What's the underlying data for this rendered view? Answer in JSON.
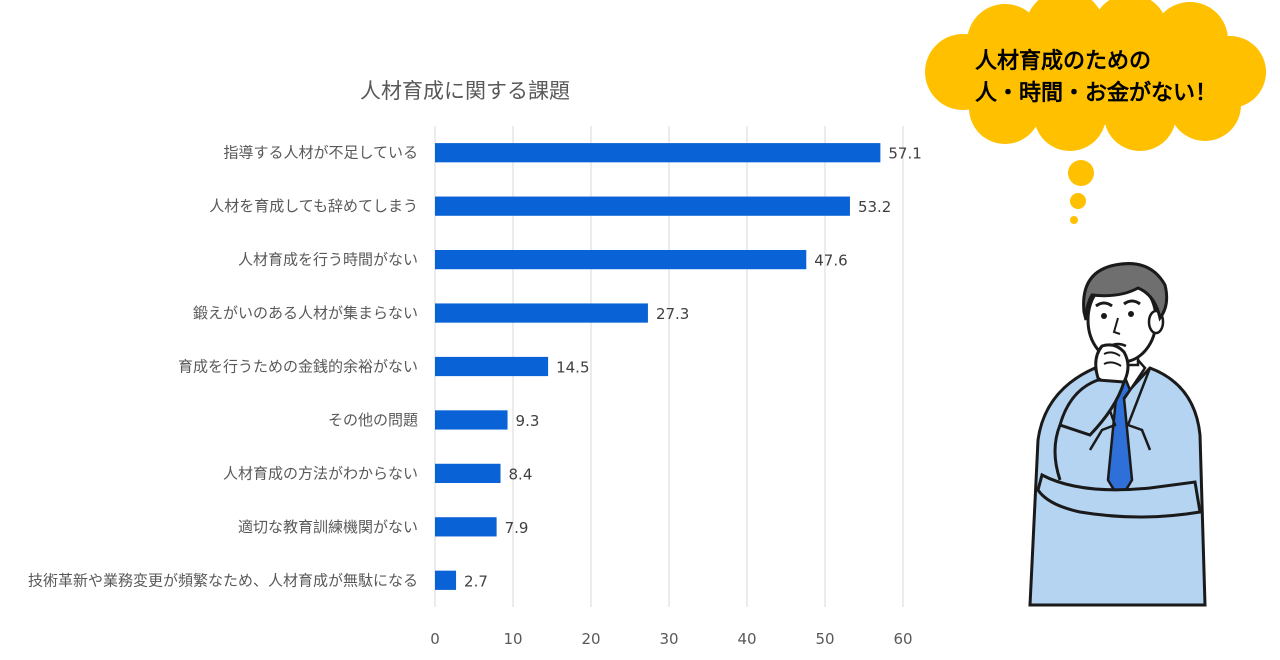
{
  "chart_data": {
    "type": "bar",
    "orientation": "horizontal",
    "title": "人材育成に関する課題",
    "categories": [
      "指導する人材が不足している",
      "人材を育成しても辞めてしまう",
      "人材育成を行う時間がない",
      "鍛えがいのある人材が集まらない",
      "育成を行うための金銭的余裕がない",
      "その他の問題",
      "人材育成の方法がわからない",
      "適切な教育訓練機関がない",
      "技術革新や業務変更が頻繁なため、人材育成が無駄になる"
    ],
    "values": [
      57.1,
      53.2,
      47.6,
      27.3,
      14.5,
      9.3,
      8.4,
      7.9,
      2.7
    ],
    "value_labels": [
      "57.1",
      "53.2",
      "47.6",
      "27.3",
      "14.5",
      "9.3",
      "8.4",
      "7.9",
      "2.7"
    ],
    "xlim": [
      0,
      60
    ],
    "xticks": [
      "0",
      "10",
      "20",
      "30",
      "40",
      "50",
      "60"
    ],
    "grid": true,
    "bar_color": "#0a63d6"
  },
  "thought_bubble": {
    "line1": "人材育成のための",
    "line2": "人・時間・お金がない！",
    "color": "#ffc000"
  },
  "illustration": {
    "icon": "thinking-businessman-icon",
    "jacket_color": "#b4d4f2",
    "tie_color": "#2f6fd8"
  }
}
